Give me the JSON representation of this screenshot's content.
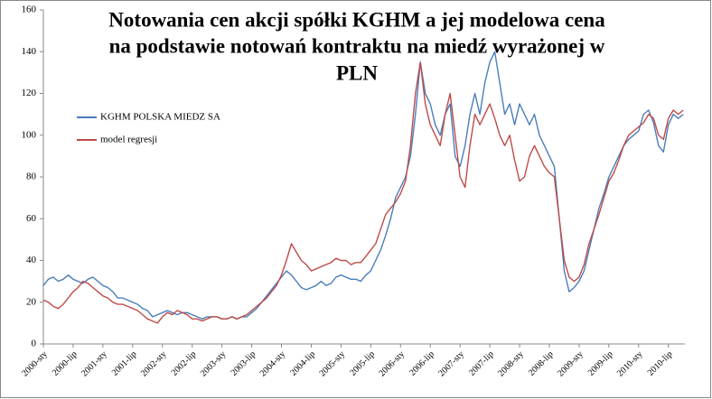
{
  "chart_data": {
    "type": "line",
    "title_lines": [
      "Notowania cen akcji spółki KGHM a jej modelowa cena",
      "na podstawie notowań kontraktu na miedź wyrażonej  w",
      "PLN"
    ],
    "categories": [
      "2000-sty",
      null,
      null,
      null,
      null,
      null,
      "2000-lip",
      null,
      null,
      null,
      null,
      null,
      "2001-sty",
      null,
      null,
      null,
      null,
      null,
      "2001-lip",
      null,
      null,
      null,
      null,
      null,
      "2002-sty",
      null,
      null,
      null,
      null,
      null,
      "2002-lip",
      null,
      null,
      null,
      null,
      null,
      "2003-sty",
      null,
      null,
      null,
      null,
      null,
      "2003-lip",
      null,
      null,
      null,
      null,
      null,
      "2004-sty",
      null,
      null,
      null,
      null,
      null,
      "2004-lip",
      null,
      null,
      null,
      null,
      null,
      "2005-sty",
      null,
      null,
      null,
      null,
      null,
      "2005-lip",
      null,
      null,
      null,
      null,
      null,
      "2006-sty",
      null,
      null,
      null,
      null,
      null,
      "2006-lip",
      null,
      null,
      null,
      null,
      null,
      "2007-sty",
      null,
      null,
      null,
      null,
      null,
      "2007-lip",
      null,
      null,
      null,
      null,
      null,
      "2008-sty",
      null,
      null,
      null,
      null,
      null,
      "2008-lip",
      null,
      null,
      null,
      null,
      null,
      "2009-sty",
      null,
      null,
      null,
      null,
      null,
      "2009-lip",
      null,
      null,
      null,
      null,
      null,
      "2010-sty",
      null,
      null,
      null,
      null,
      null,
      "2010-lip",
      null,
      null,
      null
    ],
    "series": [
      {
        "name": "KGHM POLSKA MIEDZ SA",
        "color": "#4a7ebb",
        "values": [
          28,
          31,
          32,
          30,
          31,
          33,
          31,
          30,
          29,
          31,
          32,
          30,
          28,
          27,
          25,
          22,
          22,
          21,
          20,
          19,
          17,
          16,
          13,
          14,
          15,
          16,
          15,
          14,
          15,
          15,
          14,
          13,
          12,
          13,
          13,
          13,
          12,
          12,
          13,
          12,
          13,
          13,
          15,
          17,
          20,
          23,
          26,
          29,
          32,
          35,
          33,
          30,
          27,
          26,
          27,
          28,
          30,
          28,
          29,
          32,
          33,
          32,
          31,
          31,
          30,
          33,
          35,
          40,
          45,
          52,
          60,
          70,
          75,
          80,
          90,
          110,
          135,
          120,
          115,
          105,
          100,
          110,
          115,
          90,
          85,
          95,
          110,
          120,
          110,
          125,
          135,
          140,
          125,
          110,
          115,
          105,
          115,
          110,
          105,
          110,
          100,
          95,
          90,
          85,
          60,
          35,
          25,
          27,
          30,
          35,
          45,
          55,
          65,
          72,
          80,
          85,
          90,
          95,
          98,
          100,
          102,
          110,
          112,
          106,
          95,
          92,
          105,
          110,
          108,
          110
        ]
      },
      {
        "name": "model regresji",
        "color": "#be4b48",
        "values": [
          21,
          20,
          18,
          17,
          19,
          22,
          25,
          27,
          30,
          29,
          27,
          25,
          23,
          22,
          20,
          19,
          19,
          18,
          17,
          16,
          14,
          12,
          11,
          10,
          13,
          15,
          14,
          16,
          15,
          14,
          12,
          12,
          11,
          12,
          13,
          13,
          12,
          12,
          13,
          12,
          13,
          14,
          16,
          18,
          20,
          22,
          25,
          28,
          33,
          40,
          48,
          44,
          40,
          38,
          35,
          36,
          37,
          38,
          39,
          41,
          40,
          40,
          38,
          39,
          39,
          42,
          45,
          48,
          55,
          62,
          65,
          68,
          72,
          78,
          95,
          120,
          135,
          115,
          105,
          100,
          95,
          110,
          120,
          100,
          80,
          75,
          95,
          110,
          105,
          110,
          115,
          108,
          100,
          95,
          100,
          88,
          78,
          80,
          90,
          95,
          90,
          85,
          82,
          80,
          60,
          40,
          32,
          30,
          32,
          38,
          48,
          55,
          62,
          70,
          78,
          82,
          88,
          95,
          100,
          102,
          104,
          106,
          110,
          108,
          100,
          98,
          108,
          112,
          110,
          112
        ]
      }
    ],
    "ylim": [
      0,
      160
    ],
    "yticks": [
      0,
      20,
      40,
      60,
      80,
      100,
      120,
      140,
      160
    ],
    "grid": false
  }
}
